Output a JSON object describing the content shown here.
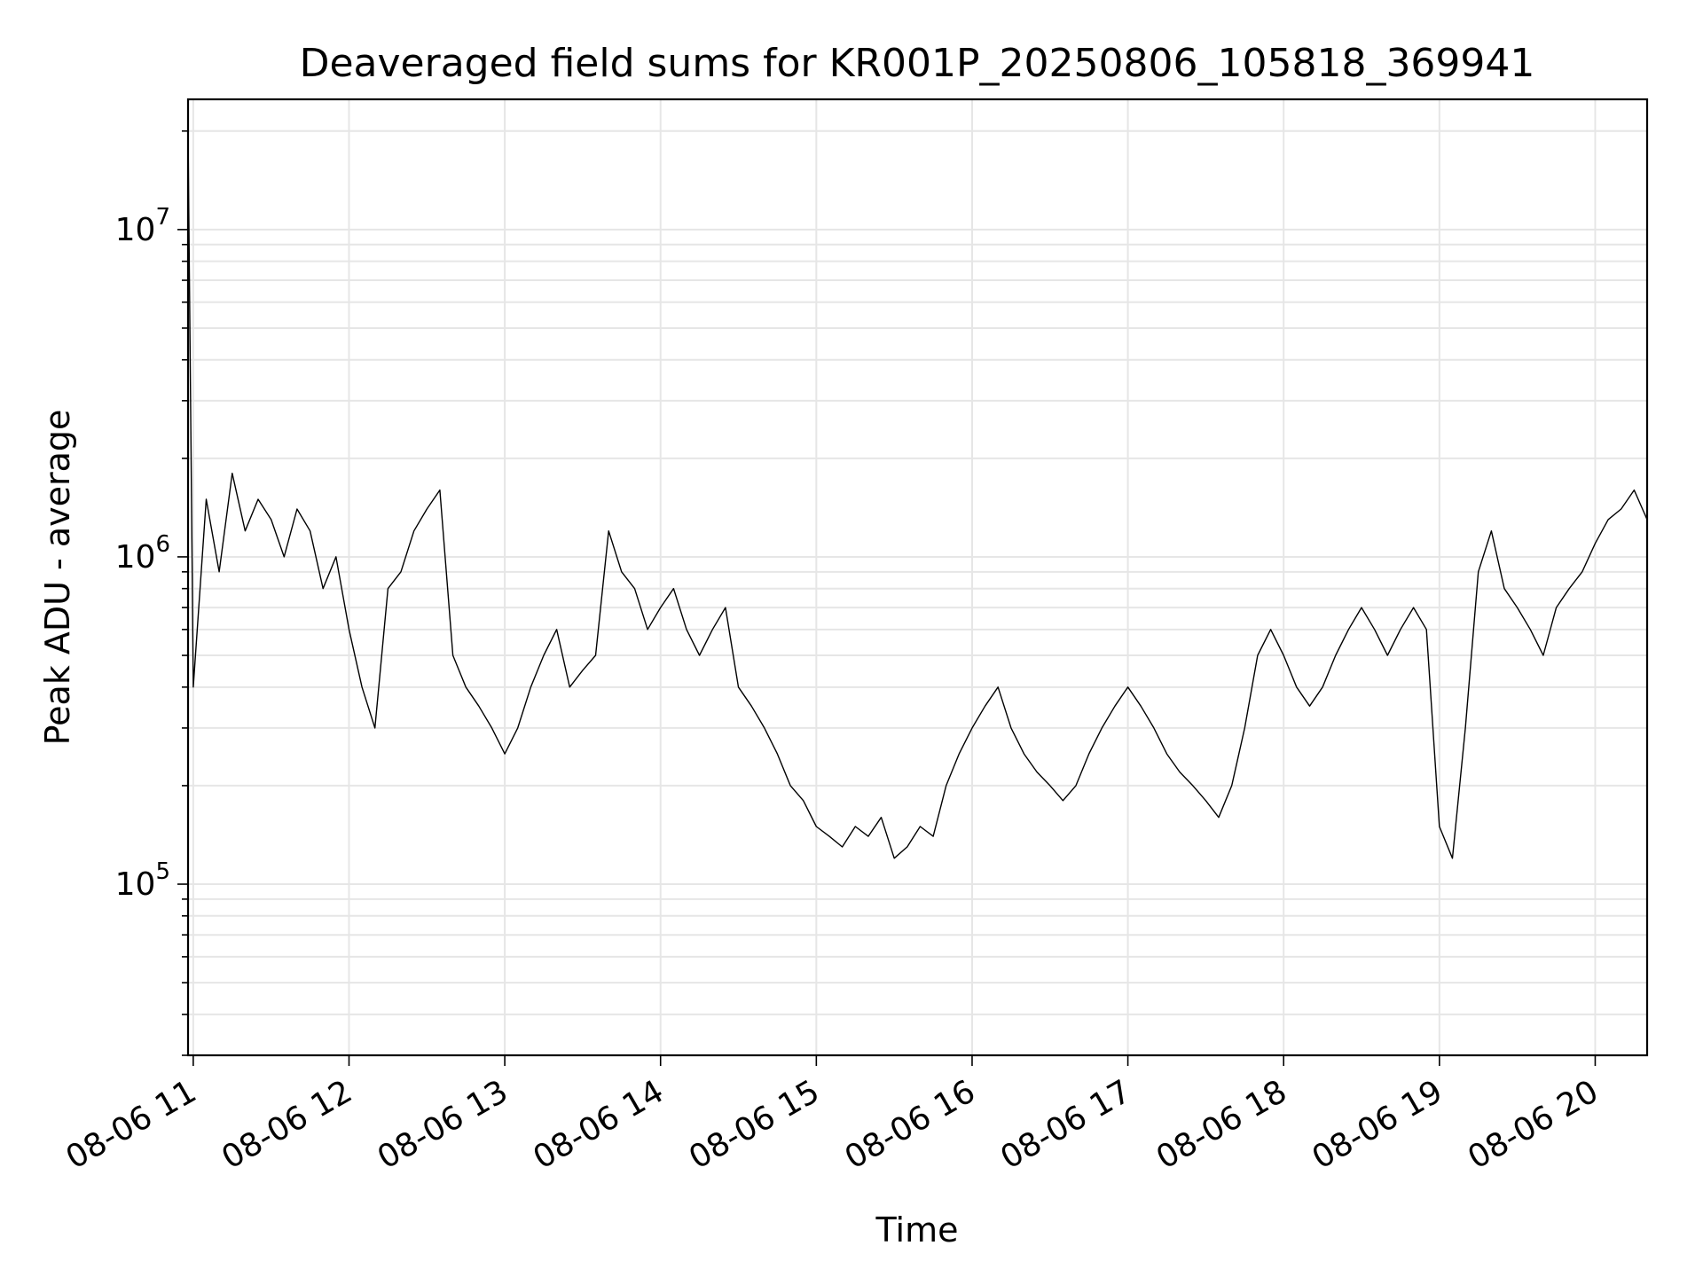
{
  "chart_data": {
    "type": "line",
    "title": "Deaveraged field sums for KR001P_20250806_105818_369941",
    "xlabel": "Time",
    "ylabel": "Peak ADU - average",
    "y_scale": "log",
    "ylim": [
      30000,
      25000000
    ],
    "xlim": [
      "2025-08-06 10:58",
      "2025-08-06 20:20"
    ],
    "grid": true,
    "line_color": "#000000",
    "x_ticks": [
      "2025-08-06 11:00",
      "2025-08-06 12:00",
      "2025-08-06 13:00",
      "2025-08-06 14:00",
      "2025-08-06 15:00",
      "2025-08-06 16:00",
      "2025-08-06 17:00",
      "2025-08-06 18:00",
      "2025-08-06 19:00",
      "2025-08-06 20:00"
    ],
    "x_tick_labels": [
      "08-06 11",
      "08-06 12",
      "08-06 13",
      "08-06 14",
      "08-06 15",
      "08-06 16",
      "08-06 17",
      "08-06 18",
      "08-06 19",
      "08-06 20"
    ],
    "y_ticks": [
      {
        "value": 100000,
        "base": "10",
        "exp": "5"
      },
      {
        "value": 1000000,
        "base": "10",
        "exp": "6"
      },
      {
        "value": 10000000,
        "base": "10",
        "exp": "7"
      }
    ],
    "series": [
      {
        "values_time": [
          "2025-08-06 10:58",
          "2025-08-06 11:00",
          "2025-08-06 11:05",
          "2025-08-06 11:10",
          "2025-08-06 11:15",
          "2025-08-06 11:20",
          "2025-08-06 11:25",
          "2025-08-06 11:30",
          "2025-08-06 11:35",
          "2025-08-06 11:40",
          "2025-08-06 11:45",
          "2025-08-06 11:50",
          "2025-08-06 11:55",
          "2025-08-06 12:00",
          "2025-08-06 12:05",
          "2025-08-06 12:10",
          "2025-08-06 12:15",
          "2025-08-06 12:20",
          "2025-08-06 12:25",
          "2025-08-06 12:30",
          "2025-08-06 12:35",
          "2025-08-06 12:40",
          "2025-08-06 12:45",
          "2025-08-06 12:50",
          "2025-08-06 12:55",
          "2025-08-06 13:00",
          "2025-08-06 13:05",
          "2025-08-06 13:10",
          "2025-08-06 13:15",
          "2025-08-06 13:20",
          "2025-08-06 13:25",
          "2025-08-06 13:30",
          "2025-08-06 13:35",
          "2025-08-06 13:40",
          "2025-08-06 13:45",
          "2025-08-06 13:50",
          "2025-08-06 13:55",
          "2025-08-06 14:00",
          "2025-08-06 14:05",
          "2025-08-06 14:10",
          "2025-08-06 14:15",
          "2025-08-06 14:20",
          "2025-08-06 14:25",
          "2025-08-06 14:30",
          "2025-08-06 14:35",
          "2025-08-06 14:40",
          "2025-08-06 14:45",
          "2025-08-06 14:50",
          "2025-08-06 14:55",
          "2025-08-06 15:00",
          "2025-08-06 15:05",
          "2025-08-06 15:10",
          "2025-08-06 15:15",
          "2025-08-06 15:20",
          "2025-08-06 15:25",
          "2025-08-06 15:30",
          "2025-08-06 15:35",
          "2025-08-06 15:40",
          "2025-08-06 15:45",
          "2025-08-06 15:50",
          "2025-08-06 15:55",
          "2025-08-06 16:00",
          "2025-08-06 16:05",
          "2025-08-06 16:10",
          "2025-08-06 16:15",
          "2025-08-06 16:20",
          "2025-08-06 16:25",
          "2025-08-06 16:30",
          "2025-08-06 16:35",
          "2025-08-06 16:40",
          "2025-08-06 16:45",
          "2025-08-06 16:50",
          "2025-08-06 16:55",
          "2025-08-06 17:00",
          "2025-08-06 17:05",
          "2025-08-06 17:10",
          "2025-08-06 17:15",
          "2025-08-06 17:20",
          "2025-08-06 17:25",
          "2025-08-06 17:30",
          "2025-08-06 17:35",
          "2025-08-06 17:40",
          "2025-08-06 17:45",
          "2025-08-06 17:50",
          "2025-08-06 17:55",
          "2025-08-06 18:00",
          "2025-08-06 18:05",
          "2025-08-06 18:10",
          "2025-08-06 18:15",
          "2025-08-06 18:20",
          "2025-08-06 18:25",
          "2025-08-06 18:30",
          "2025-08-06 18:35",
          "2025-08-06 18:40",
          "2025-08-06 18:45",
          "2025-08-06 18:50",
          "2025-08-06 18:55",
          "2025-08-06 19:00",
          "2025-08-06 19:05",
          "2025-08-06 19:10",
          "2025-08-06 19:15",
          "2025-08-06 19:20",
          "2025-08-06 19:25",
          "2025-08-06 19:30",
          "2025-08-06 19:35",
          "2025-08-06 19:40",
          "2025-08-06 19:45",
          "2025-08-06 19:50",
          "2025-08-06 19:55",
          "2025-08-06 20:00",
          "2025-08-06 20:05",
          "2025-08-06 20:10",
          "2025-08-06 20:15",
          "2025-08-06 20:20"
        ],
        "values_y": [
          20000000,
          400000,
          1500000,
          900000,
          1800000,
          1200000,
          1500000,
          1300000,
          1000000,
          1400000,
          1200000,
          800000,
          1000000,
          600000,
          400000,
          300000,
          800000,
          900000,
          1200000,
          1400000,
          1600000,
          500000,
          400000,
          350000,
          300000,
          250000,
          300000,
          400000,
          500000,
          600000,
          400000,
          450000,
          500000,
          1200000,
          900000,
          800000,
          600000,
          700000,
          800000,
          600000,
          500000,
          600000,
          700000,
          400000,
          350000,
          300000,
          250000,
          200000,
          180000,
          150000,
          140000,
          130000,
          150000,
          140000,
          160000,
          120000,
          130000,
          150000,
          140000,
          200000,
          250000,
          300000,
          350000,
          400000,
          300000,
          250000,
          220000,
          200000,
          180000,
          200000,
          250000,
          300000,
          350000,
          400000,
          350000,
          300000,
          250000,
          220000,
          200000,
          180000,
          160000,
          200000,
          300000,
          500000,
          600000,
          500000,
          400000,
          350000,
          400000,
          500000,
          600000,
          700000,
          600000,
          500000,
          600000,
          700000,
          600000,
          150000,
          120000,
          300000,
          900000,
          1200000,
          800000,
          700000,
          600000,
          500000,
          700000,
          800000,
          900000,
          1100000,
          1300000,
          1400000,
          1600000,
          1300000
        ]
      }
    ]
  }
}
